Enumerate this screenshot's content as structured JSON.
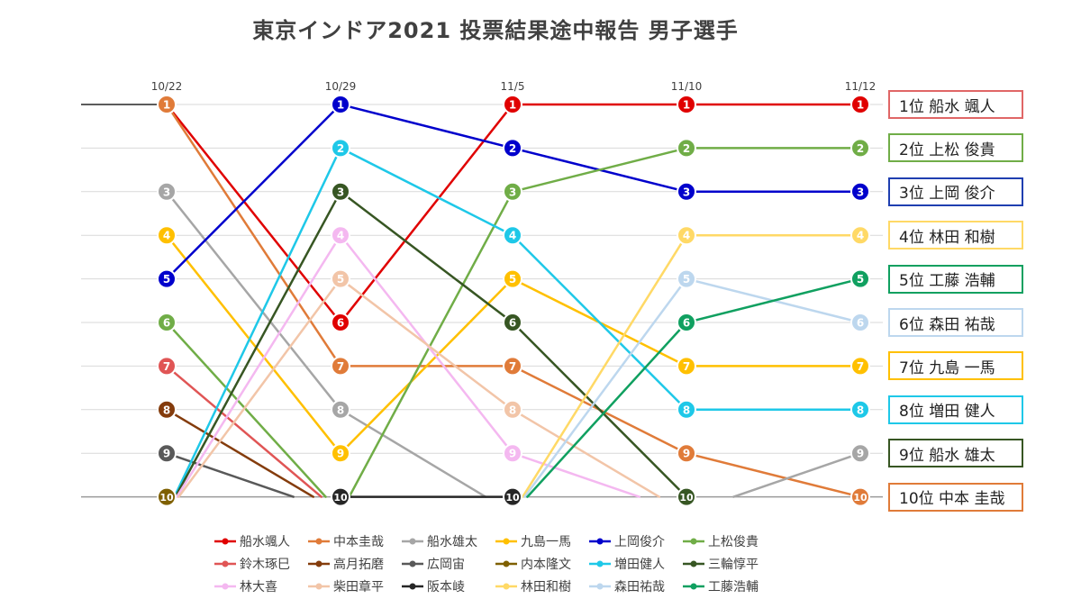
{
  "title": "東京インドア2021  投票結果途中報告  男子選手",
  "chart_data": {
    "type": "line",
    "subtype": "bump",
    "x": [
      "10/22",
      "10/29",
      "11/5",
      "11/10",
      "11/12"
    ],
    "y_axis": {
      "inverted": true,
      "range": [
        1,
        10
      ],
      "tick_labels_shown": false
    },
    "grid": true,
    "legend_position": "bottom",
    "series": [
      {
        "name": "船水颯人",
        "color": "#e00000",
        "ranks": [
          1,
          6,
          1,
          1,
          1
        ]
      },
      {
        "name": "中本圭哉",
        "color": "#e07b39",
        "ranks": [
          1,
          7,
          7,
          9,
          10
        ]
      },
      {
        "name": "船水雄太",
        "color": "#a6a6a6",
        "ranks": [
          3,
          8,
          11,
          11,
          9
        ]
      },
      {
        "name": "九島一馬",
        "color": "#ffc000",
        "ranks": [
          4,
          9,
          5,
          7,
          7
        ]
      },
      {
        "name": "上岡俊介",
        "color": "#0000cc",
        "ranks": [
          5,
          1,
          2,
          3,
          3
        ]
      },
      {
        "name": "上松俊貴",
        "color": "#70ad47",
        "ranks": [
          6,
          11,
          3,
          2,
          2
        ]
      },
      {
        "name": "鈴木琢巳",
        "color": "#e05555",
        "ranks": [
          7,
          11,
          null,
          null,
          null
        ]
      },
      {
        "name": "高月拓磨",
        "color": "#843c0c",
        "ranks": [
          8,
          11,
          null,
          null,
          null
        ]
      },
      {
        "name": "広岡宙",
        "color": "#595959",
        "ranks": [
          9,
          11,
          null,
          null,
          null
        ]
      },
      {
        "name": "内本隆文",
        "color": "#7f6000",
        "ranks": [
          10,
          null,
          null,
          null,
          null
        ]
      },
      {
        "name": "増田健人",
        "color": "#1ec8e8",
        "ranks": [
          11,
          2,
          4,
          8,
          8
        ]
      },
      {
        "name": "三輪惇平",
        "color": "#375623",
        "ranks": [
          11,
          3,
          6,
          10,
          null
        ]
      },
      {
        "name": "林大喜",
        "color": "#f4b8f0",
        "ranks": [
          11,
          4,
          9,
          11,
          null
        ]
      },
      {
        "name": "柴田章平",
        "color": "#f2c5a8",
        "ranks": [
          11,
          5,
          8,
          11,
          null
        ]
      },
      {
        "name": "阪本崚",
        "color": "#262626",
        "ranks": [
          null,
          10,
          10,
          null,
          null
        ]
      },
      {
        "name": "林田和樹",
        "color": "#ffd966",
        "ranks": [
          null,
          null,
          11,
          4,
          4
        ]
      },
      {
        "name": "森田祐哉",
        "color": "#bdd7ee",
        "ranks": [
          null,
          null,
          11,
          5,
          6
        ]
      },
      {
        "name": "工藤浩輔",
        "color": "#10a060",
        "ranks": [
          null,
          null,
          11,
          6,
          5
        ]
      }
    ]
  },
  "top_line_color": "#262626",
  "final_ranking": [
    {
      "label": "1位  船水 颯人",
      "color": "#e06666"
    },
    {
      "label": "2位  上松 俊貴",
      "color": "#70ad47"
    },
    {
      "label": "3位  上岡 俊介",
      "color": "#1f3fb0"
    },
    {
      "label": "4位  林田 和樹",
      "color": "#ffd966"
    },
    {
      "label": "5位  工藤 浩輔",
      "color": "#10a060"
    },
    {
      "label": "6位  森田 祐哉",
      "color": "#bdd7ee"
    },
    {
      "label": "7位  九島 一馬",
      "color": "#ffc000"
    },
    {
      "label": "8位  増田 健人",
      "color": "#1ec8e8"
    },
    {
      "label": "9位  船水 雄太",
      "color": "#375623"
    },
    {
      "label": "10位  中本 圭哉",
      "color": "#e07b39"
    }
  ]
}
